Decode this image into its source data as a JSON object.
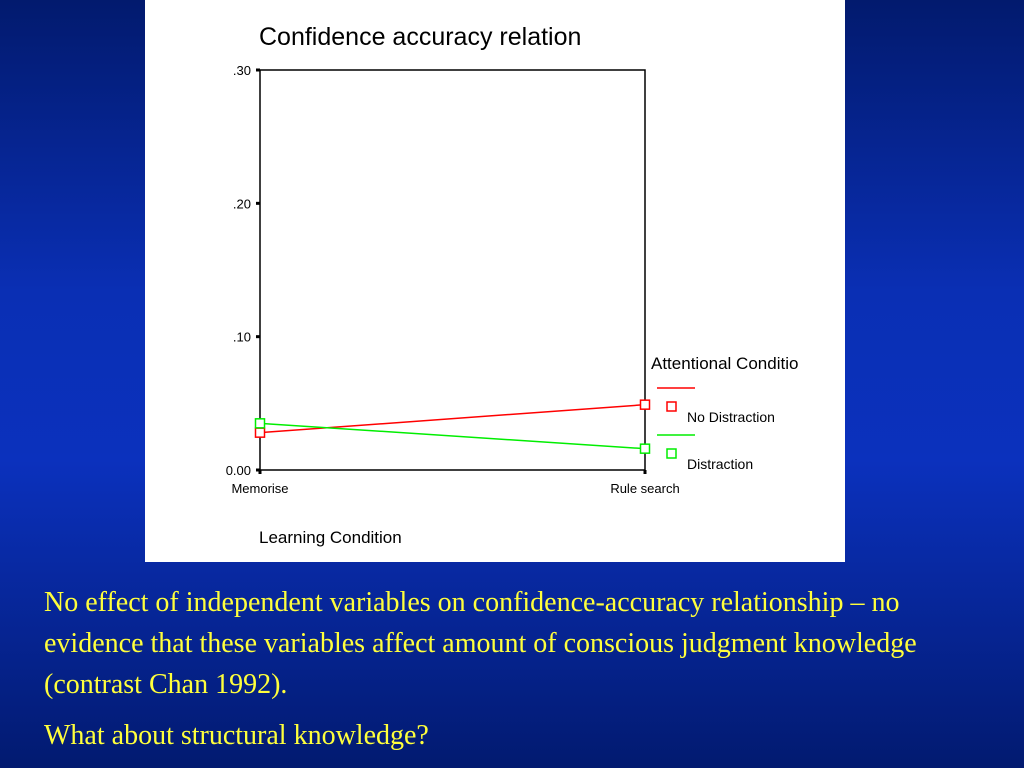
{
  "slide": {
    "paragraphs": [
      "No effect of independent variables on confidence-accuracy relationship – no evidence that these variables affect amount of conscious judgment knowledge (contrast Chan 1992).",
      "What about structural knowledge?"
    ],
    "background_color": "#0b31bd",
    "text_color": "#ffff3c"
  },
  "chart_data": {
    "type": "line",
    "title": "Confidence accuracy relation",
    "xlabel": "Learning Condition",
    "ylabel": "",
    "categories": [
      "Memorise",
      "Rule search"
    ],
    "y_ticks": [
      ".30",
      ".20",
      ".10",
      "0.00"
    ],
    "y_tick_values": [
      0.3,
      0.2,
      0.1,
      0.0
    ],
    "ylim": [
      0,
      0.3
    ],
    "legend_title": "Attentional Conditio",
    "legend_position": "right",
    "grid": false,
    "series": [
      {
        "name": "No Distraction",
        "values": [
          0.028,
          0.049
        ],
        "color": "#ff0000",
        "marker": "square"
      },
      {
        "name": "Distraction",
        "values": [
          0.035,
          0.016
        ],
        "color": "#00ee00",
        "marker": "square"
      }
    ]
  }
}
